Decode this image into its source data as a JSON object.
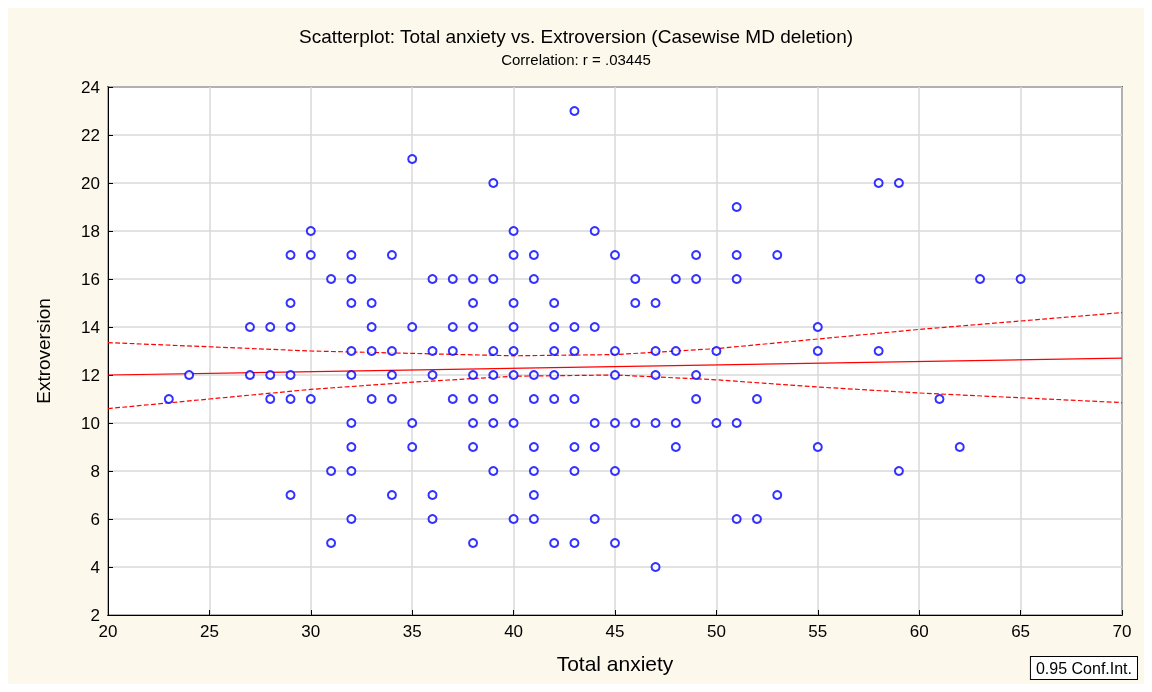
{
  "chart_data": {
    "type": "scatter",
    "title": "Scatterplot: Total anxiety vs. Extroversion (Casewise MD deletion)",
    "subtitle": "Correlation: r = .03445",
    "xlabel": "Total anxiety",
    "ylabel": "Extroversion",
    "annotations": [
      "0.95 Conf.Int."
    ],
    "xlim": [
      20,
      70
    ],
    "xticks": [
      20,
      25,
      30,
      35,
      40,
      45,
      50,
      55,
      60,
      65,
      70
    ],
    "ylim": [
      2,
      24
    ],
    "yticks": [
      2,
      4,
      6,
      8,
      10,
      12,
      14,
      16,
      18,
      20,
      22,
      24
    ],
    "grid": true,
    "series": [
      {
        "type": "scatter",
        "color": "#0000ff",
        "marker": "circle",
        "x": [
          23,
          24,
          27,
          27,
          28,
          28,
          28,
          29,
          29,
          29,
          29,
          29,
          29,
          30,
          30,
          30,
          31,
          31,
          31,
          32,
          32,
          32,
          32,
          32,
          32,
          32,
          32,
          32,
          33,
          33,
          33,
          33,
          34,
          34,
          34,
          34,
          34,
          35,
          35,
          35,
          35,
          36,
          36,
          36,
          36,
          36,
          37,
          37,
          37,
          37,
          38,
          38,
          38,
          38,
          38,
          38,
          38,
          38,
          39,
          39,
          39,
          39,
          39,
          39,
          39,
          40,
          40,
          40,
          40,
          40,
          40,
          40,
          40,
          41,
          41,
          41,
          41,
          41,
          41,
          41,
          41,
          42,
          42,
          42,
          42,
          42,
          42,
          43,
          43,
          43,
          43,
          43,
          43,
          43,
          44,
          44,
          44,
          44,
          44,
          45,
          45,
          45,
          45,
          45,
          45,
          46,
          46,
          46,
          47,
          47,
          47,
          47,
          47,
          48,
          48,
          48,
          48,
          49,
          49,
          49,
          49,
          50,
          50,
          51,
          51,
          51,
          51,
          51,
          52,
          52,
          53,
          53,
          55,
          55,
          55,
          58,
          58,
          59,
          59,
          61,
          62,
          63,
          65
        ],
        "values": [
          11,
          12,
          14,
          12,
          14,
          12,
          11,
          17,
          15,
          14,
          12,
          11,
          7,
          18,
          17,
          11,
          16,
          8,
          5,
          17,
          16,
          15,
          13,
          12,
          10,
          9,
          8,
          6,
          15,
          14,
          13,
          11,
          17,
          13,
          12,
          11,
          7,
          21,
          14,
          10,
          9,
          16,
          13,
          12,
          7,
          6,
          16,
          14,
          13,
          11,
          16,
          15,
          14,
          12,
          11,
          10,
          9,
          5,
          20,
          16,
          13,
          12,
          11,
          10,
          8,
          18,
          17,
          15,
          14,
          13,
          12,
          10,
          6,
          17,
          16,
          12,
          11,
          9,
          8,
          7,
          6,
          15,
          14,
          13,
          12,
          11,
          5,
          23,
          14,
          13,
          11,
          9,
          8,
          5,
          18,
          14,
          10,
          9,
          6,
          17,
          13,
          12,
          10,
          8,
          5,
          16,
          15,
          10,
          15,
          13,
          12,
          10,
          4,
          16,
          13,
          10,
          9,
          17,
          16,
          12,
          11,
          13,
          10,
          19,
          17,
          16,
          10,
          6,
          11,
          6,
          17,
          7,
          14,
          13,
          9,
          20,
          13,
          20,
          8,
          11,
          9,
          16,
          16
        ]
      },
      {
        "type": "line",
        "color": "#ff0000",
        "marker": "none",
        "line_style": "solid",
        "x": [
          20,
          70
        ],
        "values": [
          12.0,
          12.7
        ]
      },
      {
        "type": "line",
        "color": "#ff0000",
        "marker": "none",
        "line_style": "dashed",
        "x": [
          20,
          30,
          40,
          45,
          50,
          55,
          60,
          65,
          70
        ],
        "values": [
          13.35,
          13.0,
          12.8,
          12.85,
          13.1,
          13.5,
          13.9,
          14.25,
          14.6
        ]
      },
      {
        "type": "line",
        "color": "#ff0000",
        "marker": "none",
        "line_style": "dashed",
        "x": [
          20,
          25,
          30,
          35,
          40,
          45,
          50,
          55,
          60,
          65,
          70
        ],
        "values": [
          10.6,
          11.0,
          11.4,
          11.7,
          11.95,
          12.0,
          11.8,
          11.5,
          11.25,
          11.05,
          10.85
        ]
      }
    ]
  }
}
